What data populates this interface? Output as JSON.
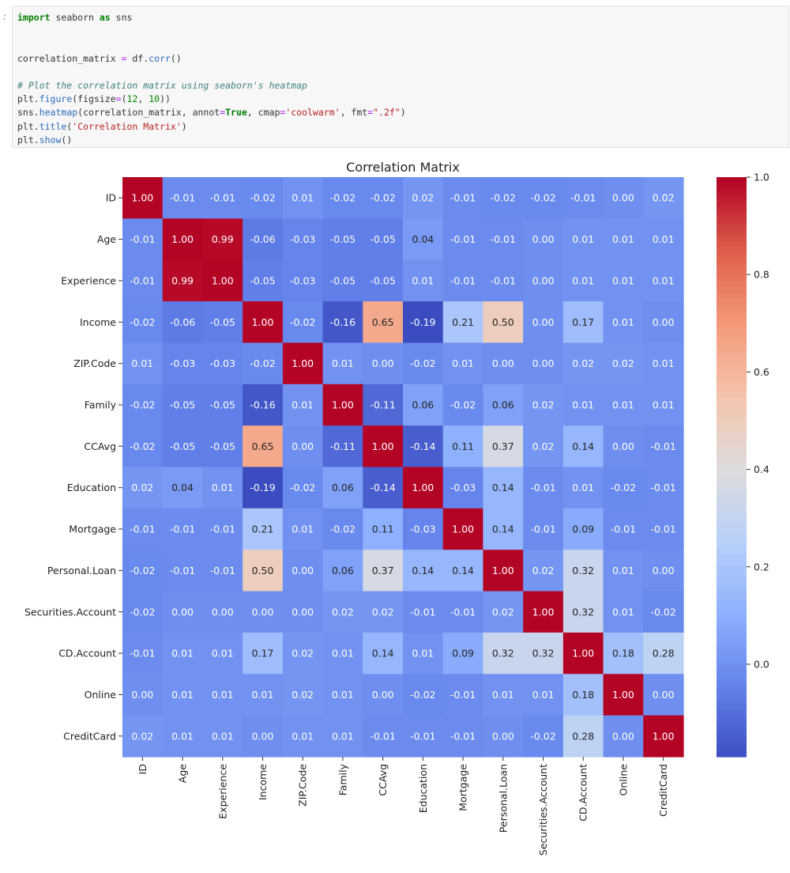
{
  "notebook": {
    "prompt": ":",
    "code_lines": [
      [
        {
          "t": "import",
          "k": "kw"
        },
        {
          "t": " seaborn "
        },
        {
          "t": "as",
          "k": "kw"
        },
        {
          "t": " sns"
        }
      ],
      [],
      [],
      [
        {
          "t": "correlation_matrix "
        },
        {
          "t": "=",
          "k": "op"
        },
        {
          "t": " df."
        },
        {
          "t": "corr",
          "k": "fn"
        },
        {
          "t": "()"
        }
      ],
      [],
      [
        {
          "t": "# Plot the correlation matrix using seaborn's heatmap",
          "k": "com"
        }
      ],
      [
        {
          "t": "plt."
        },
        {
          "t": "figure",
          "k": "fn"
        },
        {
          "t": "(figsize"
        },
        {
          "t": "=",
          "k": "op"
        },
        {
          "t": "("
        },
        {
          "t": "12",
          "k": "num"
        },
        {
          "t": ", "
        },
        {
          "t": "10",
          "k": "num"
        },
        {
          "t": "))"
        }
      ],
      [
        {
          "t": "sns."
        },
        {
          "t": "heatmap",
          "k": "fn"
        },
        {
          "t": "(correlation_matrix, annot"
        },
        {
          "t": "=",
          "k": "op"
        },
        {
          "t": "True",
          "k": "kw"
        },
        {
          "t": ", cmap"
        },
        {
          "t": "=",
          "k": "op"
        },
        {
          "t": "'coolwarm'",
          "k": "str"
        },
        {
          "t": ", fmt"
        },
        {
          "t": "=",
          "k": "op"
        },
        {
          "t": "\".2f\"",
          "k": "str"
        },
        {
          "t": ")"
        }
      ],
      [
        {
          "t": "plt."
        },
        {
          "t": "title",
          "k": "fn"
        },
        {
          "t": "("
        },
        {
          "t": "'Correlation Matrix'",
          "k": "str"
        },
        {
          "t": ")"
        }
      ],
      [
        {
          "t": "plt."
        },
        {
          "t": "show",
          "k": "fn"
        },
        {
          "t": "()"
        }
      ]
    ]
  },
  "chart_data": {
    "type": "heatmap",
    "title": "Correlation Matrix",
    "colormap": "coolwarm",
    "vmin": -0.19,
    "vmax": 1.0,
    "colorbar_ticks": [
      "0.0",
      "0.2",
      "0.4",
      "0.6",
      "0.8",
      "1.0"
    ],
    "labels": [
      "ID",
      "Age",
      "Experience",
      "Income",
      "ZIP.Code",
      "Family",
      "CCAvg",
      "Education",
      "Mortgage",
      "Personal.Loan",
      "Securities.Account",
      "CD.Account",
      "Online",
      "CreditCard"
    ],
    "values": [
      [
        1.0,
        -0.01,
        -0.01,
        -0.02,
        0.01,
        -0.02,
        -0.02,
        0.02,
        -0.01,
        -0.02,
        -0.02,
        -0.01,
        -0.0,
        0.02
      ],
      [
        -0.01,
        1.0,
        0.99,
        -0.06,
        -0.03,
        -0.05,
        -0.05,
        0.04,
        -0.01,
        -0.01,
        -0.0,
        0.01,
        0.01,
        0.01
      ],
      [
        -0.01,
        0.99,
        1.0,
        -0.05,
        -0.03,
        -0.05,
        -0.05,
        0.01,
        -0.01,
        -0.01,
        -0.0,
        0.01,
        0.01,
        0.01
      ],
      [
        -0.02,
        -0.06,
        -0.05,
        1.0,
        -0.02,
        -0.16,
        0.65,
        -0.19,
        0.21,
        0.5,
        -0.0,
        0.17,
        0.01,
        -0.0
      ],
      [
        0.01,
        -0.03,
        -0.03,
        -0.02,
        1.0,
        0.01,
        -0.0,
        -0.02,
        0.01,
        0.0,
        0.0,
        0.02,
        0.02,
        0.01
      ],
      [
        -0.02,
        -0.05,
        -0.05,
        -0.16,
        0.01,
        1.0,
        -0.11,
        0.06,
        -0.02,
        0.06,
        0.02,
        0.01,
        0.01,
        0.01
      ],
      [
        -0.02,
        -0.05,
        -0.05,
        0.65,
        -0.0,
        -0.11,
        1.0,
        -0.14,
        0.11,
        0.37,
        0.02,
        0.14,
        -0.0,
        -0.01
      ],
      [
        0.02,
        0.04,
        0.01,
        -0.19,
        -0.02,
        0.06,
        -0.14,
        1.0,
        -0.03,
        0.14,
        -0.01,
        0.01,
        -0.02,
        -0.01
      ],
      [
        -0.01,
        -0.01,
        -0.01,
        0.21,
        0.01,
        -0.02,
        0.11,
        -0.03,
        1.0,
        0.14,
        -0.01,
        0.09,
        -0.01,
        -0.01
      ],
      [
        -0.02,
        -0.01,
        -0.01,
        0.5,
        0.0,
        0.06,
        0.37,
        0.14,
        0.14,
        1.0,
        0.02,
        0.32,
        0.01,
        0.0
      ],
      [
        -0.02,
        -0.0,
        -0.0,
        -0.0,
        0.0,
        0.02,
        0.02,
        -0.01,
        -0.01,
        0.02,
        1.0,
        0.32,
        0.01,
        -0.02
      ],
      [
        -0.01,
        0.01,
        0.01,
        0.17,
        0.02,
        0.01,
        0.14,
        0.01,
        0.09,
        0.32,
        0.32,
        1.0,
        0.18,
        0.28
      ],
      [
        -0.0,
        0.01,
        0.01,
        0.01,
        0.02,
        0.01,
        -0.0,
        -0.02,
        -0.01,
        0.01,
        0.01,
        0.18,
        1.0,
        0.0
      ],
      [
        0.02,
        0.01,
        0.01,
        -0.0,
        0.01,
        0.01,
        -0.01,
        -0.01,
        -0.01,
        0.0,
        -0.02,
        0.28,
        0.0,
        1.0
      ]
    ]
  }
}
